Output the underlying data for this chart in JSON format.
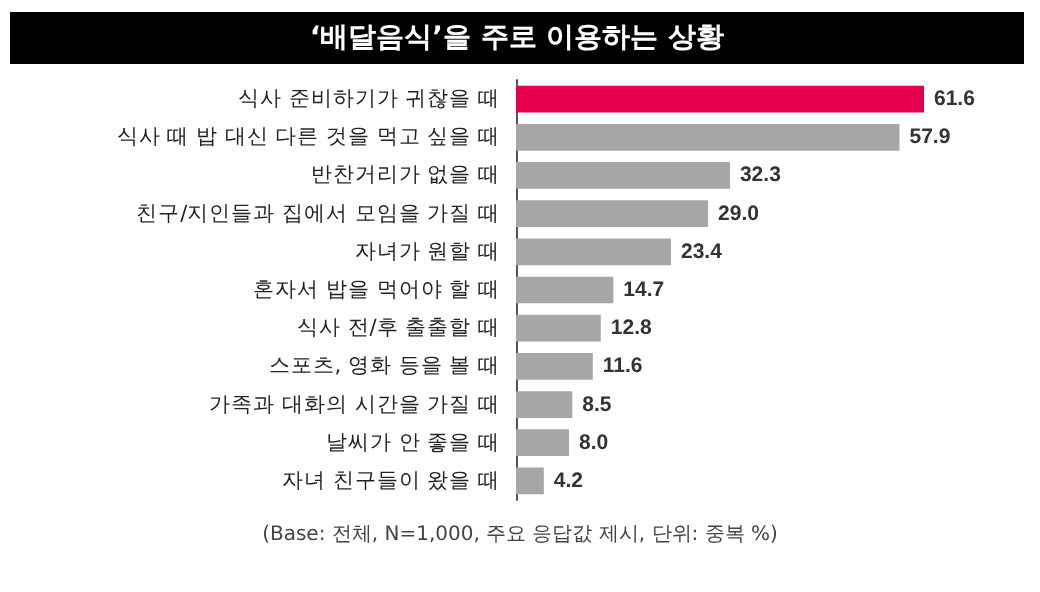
{
  "chart_data": {
    "type": "bar",
    "orientation": "horizontal",
    "title": "‘배달음식’을 주로 이용하는 상황",
    "categories": [
      "식사 준비하기가 귀찮을 때",
      "식사 때 밥 대신 다른 것을 먹고 싶을 때",
      "반찬거리가 없을 때",
      "친구/지인들과 집에서 모임을 가질 때",
      "자녀가 원할 때",
      "혼자서 밥을 먹어야 할 때",
      "식사 전/후 출출할 때",
      "스포츠, 영화 등을 볼 때",
      "가족과 대화의 시간을 가질 때",
      "날씨가 안 좋을 때",
      "자녀 친구들이 왔을 때"
    ],
    "values": [
      61.6,
      57.9,
      32.3,
      29.0,
      23.4,
      14.7,
      12.8,
      11.6,
      8.5,
      8.0,
      4.2
    ],
    "value_labels": [
      "61.6",
      "57.9",
      "32.3",
      "29.0",
      "23.4",
      "14.7",
      "12.8",
      "11.6",
      "8.5",
      "8.0",
      "4.2"
    ],
    "colors": [
      "#e4004f",
      "#a6a6a6",
      "#a6a6a6",
      "#a6a6a6",
      "#a6a6a6",
      "#a6a6a6",
      "#a6a6a6",
      "#a6a6a6",
      "#a6a6a6",
      "#a6a6a6",
      "#a6a6a6"
    ],
    "annotations": [
      "(Base: 전체, N=1,000, 주요 응답값 제시, 단위: 중복 %)"
    ],
    "grid": false
  }
}
